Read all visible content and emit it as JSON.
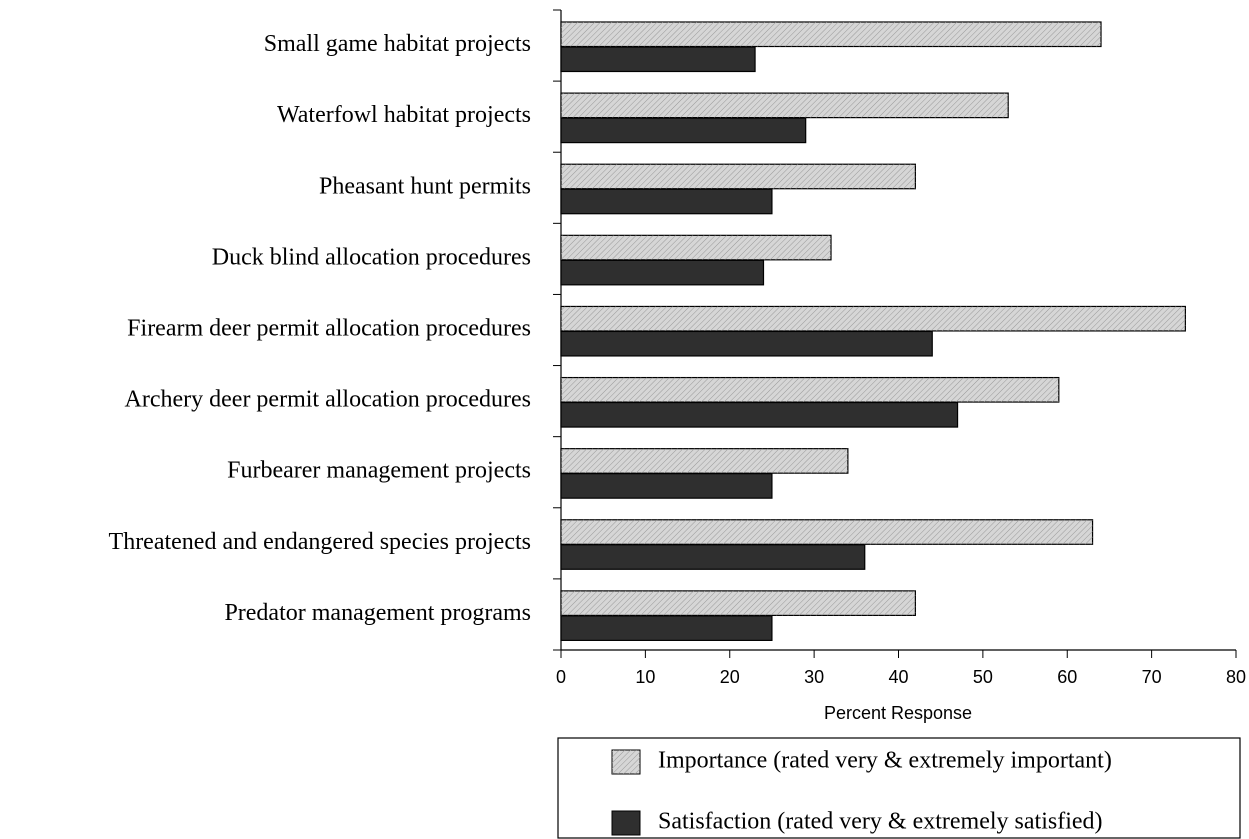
{
  "chart_data": {
    "type": "bar",
    "orientation": "horizontal",
    "xlabel": "Percent Response",
    "categories": [
      "Small game habitat projects",
      "Waterfowl habitat projects",
      "Pheasant hunt permits",
      "Duck blind allocation procedures",
      "Firearm deer permit allocation procedures",
      "Archery deer permit allocation procedures",
      "Furbearer management projects",
      "Threatened and endangered species projects",
      "Predator management programs"
    ],
    "series": [
      {
        "name": "Importance (rated very & extremely important)",
        "color": "#d6d6d6",
        "values": [
          64,
          53,
          42,
          32,
          74,
          59,
          34,
          63,
          42
        ]
      },
      {
        "name": "Satisfaction (rated very & extremely satisfied)",
        "color": "#2f2f2f",
        "values": [
          23,
          29,
          25,
          24,
          44,
          47,
          25,
          36,
          25
        ]
      }
    ],
    "xlim": [
      0,
      80
    ],
    "xticks": [
      0,
      10,
      20,
      30,
      40,
      50,
      60,
      70,
      80
    ],
    "legend": "bottom"
  }
}
